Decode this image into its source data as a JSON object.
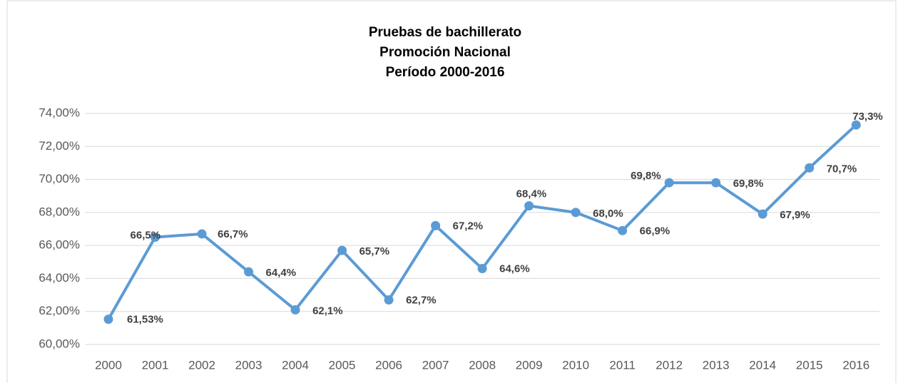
{
  "chart_data": {
    "type": "line",
    "title": [
      "Pruebas de bachillerato",
      "Promoción Nacional",
      "Período 2000-2016"
    ],
    "categories": [
      "2000",
      "2001",
      "2002",
      "2003",
      "2004",
      "2005",
      "2006",
      "2007",
      "2008",
      "2009",
      "2010",
      "2011",
      "2012",
      "2013",
      "2014",
      "2015",
      "2016"
    ],
    "series": [
      {
        "name": "Promoción",
        "color": "#5b9bd5",
        "values": [
          61.53,
          66.5,
          66.7,
          64.4,
          62.1,
          65.7,
          62.7,
          67.2,
          64.6,
          68.4,
          68.0,
          66.9,
          69.8,
          69.8,
          67.9,
          70.7,
          73.3
        ],
        "value_labels": [
          "61,53%",
          "66,5%",
          "66,7%",
          "64,4%",
          "62,1%",
          "65,7%",
          "62,7%",
          "67,2%",
          "64,6%",
          "68,4%",
          "68,0%",
          "66,9%",
          "69,8%",
          "69,8%",
          "67,9%",
          "70,7%",
          "73,3%"
        ]
      }
    ],
    "ylim": [
      60,
      74
    ],
    "yticks": [
      {
        "value": 60,
        "label": "60,00%"
      },
      {
        "value": 62,
        "label": "62,00%"
      },
      {
        "value": 64,
        "label": "64,00%"
      },
      {
        "value": 66,
        "label": "66,00%"
      },
      {
        "value": 68,
        "label": "68,00%"
      },
      {
        "value": 70,
        "label": "70,00%"
      },
      {
        "value": 72,
        "label": "72,00%"
      },
      {
        "value": 74,
        "label": "74,00%"
      }
    ],
    "grid": true
  }
}
